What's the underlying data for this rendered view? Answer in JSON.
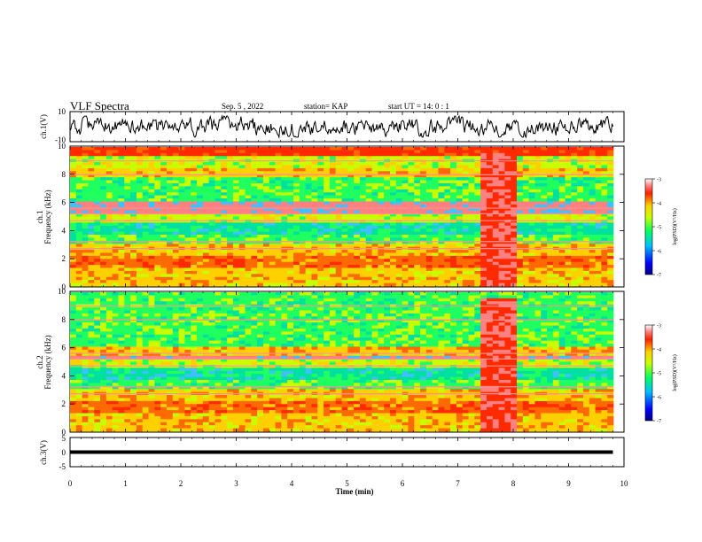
{
  "header": {
    "title": "VLF Spectra",
    "date": "Sep. 5 , 2022",
    "station": "station= KAP",
    "start_ut": "start UT =   14: 0  : 1"
  },
  "chart_data": [
    {
      "type": "line",
      "panel": "ch1-waveform",
      "ylabel": "ch.1(V)",
      "ylim": [
        -10,
        10
      ],
      "ytick_labels": [
        "10",
        "-10"
      ],
      "xlim": [
        0,
        10
      ]
    },
    {
      "type": "heatmap",
      "panel": "ch1-spectrogram",
      "ylabel": "ch.1\nFrequency (kHz)",
      "ylim": [
        0,
        10
      ],
      "yticks": [
        0,
        2,
        4,
        6,
        8,
        10
      ],
      "xlim": [
        0,
        10
      ],
      "colorbar": {
        "label": "log(PSD)(V²/Hz)",
        "range": [
          -7,
          -3
        ],
        "ticks": [
          "-3",
          "-4",
          "-5",
          "-6",
          "-7"
        ]
      }
    },
    {
      "type": "heatmap",
      "panel": "ch2-spectrogram",
      "ylabel": "ch.2\nFrequency (kHz)",
      "ylim": [
        0,
        10
      ],
      "yticks": [
        0,
        2,
        4,
        6,
        8,
        10
      ],
      "xlim": [
        0,
        10
      ],
      "colorbar": {
        "label": "log(PSD)(V²/Hz)",
        "range": [
          -7,
          -3
        ],
        "ticks": [
          "-3",
          "-4",
          "-5",
          "-6",
          "-7"
        ]
      }
    },
    {
      "type": "line",
      "panel": "ch3-waveform",
      "ylabel": "ch.3(V)",
      "ylim": [
        -5,
        5
      ],
      "ytick_labels": [
        "5",
        "0",
        "-5"
      ],
      "xlim": [
        0,
        10
      ],
      "xlabel": "Time  (min)",
      "xtick_labels": [
        "0",
        "1",
        "2",
        "3",
        "4",
        "5",
        "6",
        "7",
        "8",
        "9",
        "10"
      ],
      "series": [
        {
          "x": [
            0,
            9.8
          ],
          "y": [
            0,
            0
          ]
        }
      ]
    }
  ],
  "colors": {
    "colormap": [
      "#0000a0",
      "#0000ff",
      "#00c0ff",
      "#00ff60",
      "#c8ff00",
      "#ffd000",
      "#ff3000",
      "#ffffff"
    ],
    "line": "#000000"
  }
}
